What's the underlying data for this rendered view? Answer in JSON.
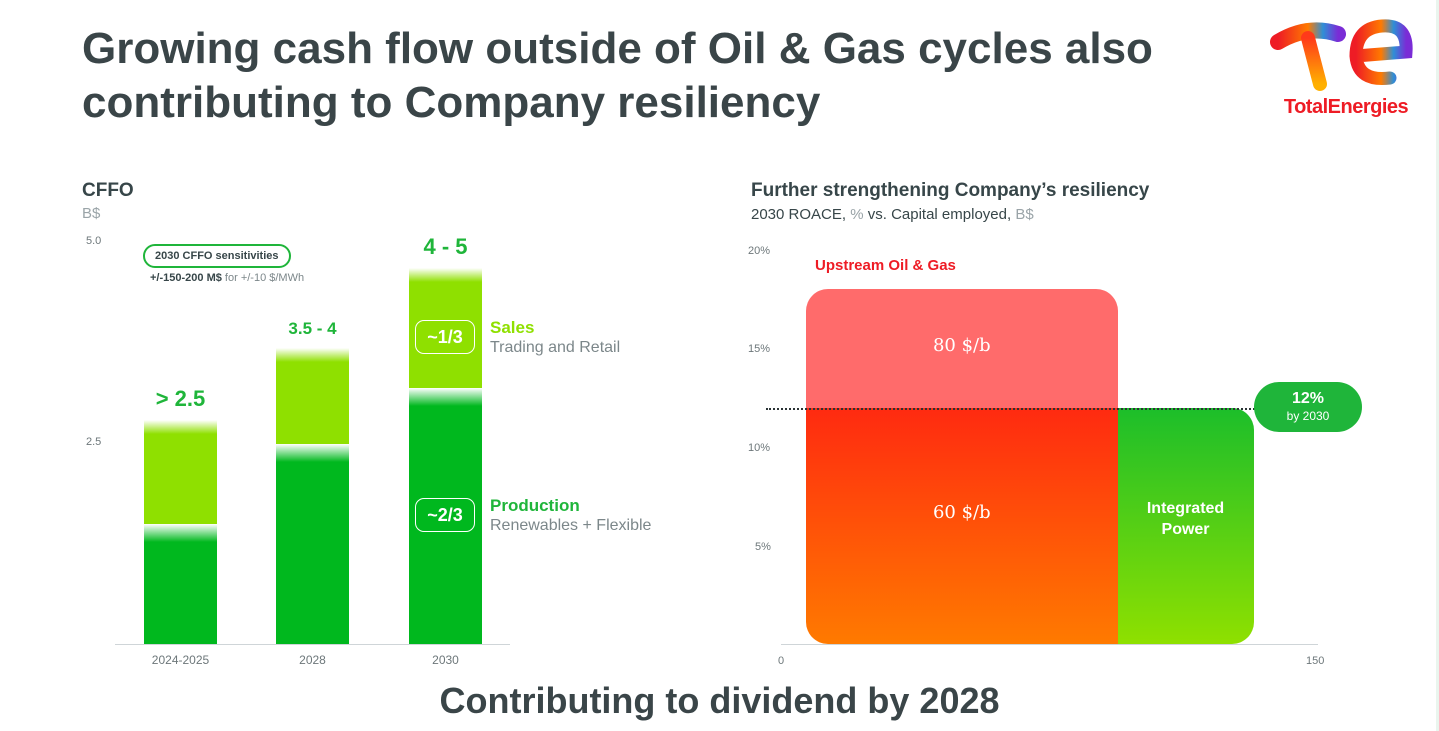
{
  "title": "Growing cash flow outside of Oil & Gas cycles also contributing to Company resiliency",
  "brand": {
    "name": "TotalEnergies",
    "logo_icon": "totalenergies-logo-icon",
    "red": "#EE1C25"
  },
  "left_chart": {
    "title": "CFFO",
    "unit": "B$",
    "y_ticks": [
      "5.0",
      "2.5"
    ],
    "sensitivity_label": "2030 CFFO sensitivities",
    "sensitivity_value": "+/-150-200 M$",
    "sensitivity_note": "for +/-10 $/MWh",
    "share_sales": "~1/3",
    "share_production": "~2/3",
    "legend_sales_title": "Sales",
    "legend_sales_sub": "Trading and Retail",
    "legend_production_title": "Production",
    "legend_production_sub": "Renewables + Flexible"
  },
  "right_chart": {
    "title": "Further strengthening Company’s resiliency",
    "subtitle_a": "2030 ROACE,",
    "subtitle_b": "%",
    "subtitle_c": "vs. Capital employed,",
    "subtitle_d": "B$",
    "y_ticks": [
      "20%",
      "15%",
      "10%",
      "5%"
    ],
    "x_ticks": [
      "0",
      "150"
    ],
    "upstream_label": "Upstream Oil & Gas",
    "price_80": "80 $/b",
    "price_60": "60 $/b",
    "power_label_1": "Integrated",
    "power_label_2": "Power",
    "target_value": "12%",
    "target_note": "by 2030"
  },
  "colors": {
    "production": "#00B81E",
    "sales": "#8FE000",
    "upstream_top": "#FF6B6B",
    "upstream_bottom_top": "#FF2A10",
    "upstream_bottom_bottom": "#FF7A00",
    "power_top": "#1CBE2A",
    "power_bottom": "#8FE000",
    "label_green": "#1FB53A"
  },
  "chart_data": [
    {
      "type": "bar",
      "stacked": true,
      "title": "CFFO",
      "ylabel": "B$",
      "ylim": [
        0,
        5
      ],
      "categories": [
        "2024-2025",
        "2028",
        "2030"
      ],
      "series": [
        {
          "name": "Production",
          "values": [
            1.5,
            2.5,
            3.2
          ]
        },
        {
          "name": "Sales",
          "values": [
            1.3,
            1.2,
            1.5
          ]
        }
      ],
      "data_labels": [
        "> 2.5",
        "3.5 - 4",
        "4 - 5"
      ]
    },
    {
      "type": "area",
      "title": "Further strengthening Company’s resiliency",
      "xlabel": "Capital employed, B$",
      "ylabel": "2030 ROACE, %",
      "xlim": [
        0,
        150
      ],
      "ylim": [
        0,
        20
      ],
      "segments": [
        {
          "name": "Upstream Oil & Gas",
          "x_start": 7,
          "x_end": 94,
          "roace_60": 12,
          "roace_80": 18
        },
        {
          "name": "Integrated Power",
          "x_start": 94,
          "x_end": 132,
          "roace": 12
        }
      ],
      "reference_line": {
        "value": 12,
        "label": "12% by 2030"
      }
    }
  ]
}
